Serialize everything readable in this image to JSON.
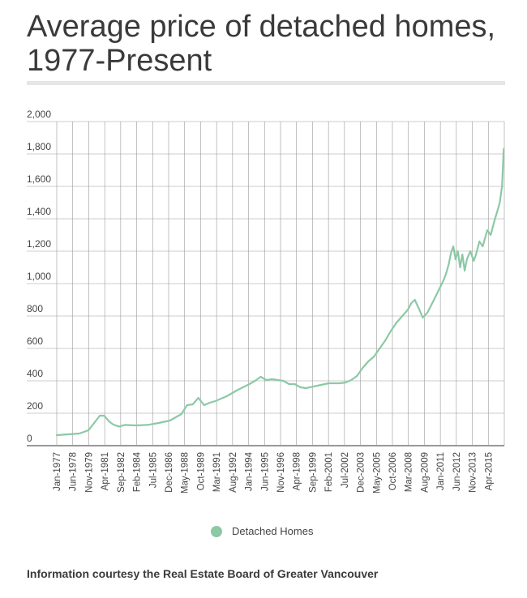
{
  "title": "Average price of detached homes, 1977-Present",
  "source": "Information courtesy the Real Estate Board of Greater Vancouver",
  "colors": {
    "series": "#8cc9a5",
    "grid": "#888888"
  },
  "chart_data": {
    "type": "line",
    "title": "Average price of detached homes, 1977-Present",
    "xlabel": "",
    "ylabel": "",
    "ylim": [
      0,
      2000
    ],
    "yticks": [
      0,
      200,
      400,
      600,
      800,
      1000,
      1200,
      1400,
      1600,
      1800,
      2000
    ],
    "ytick_labels": [
      "0",
      "200",
      "400",
      "600",
      "800",
      "1,000",
      "1,200",
      "1,400",
      "1,600",
      "1,800",
      "2,000"
    ],
    "x_unit": "years since Jan-1977",
    "xlim": [
      0,
      39.5
    ],
    "xtick_labels": [
      "Jan-1977",
      "Jun-1978",
      "Nov-1979",
      "Apr-1981",
      "Sep-1982",
      "Feb-1984",
      "Jul-1985",
      "Dec-1986",
      "May-1988",
      "Oct-1989",
      "Mar-1991",
      "Aug-1992",
      "Jan-1994",
      "Jun-1995",
      "Nov-1996",
      "Apr-1998",
      "Sep-1999",
      "Feb-2001",
      "Jul-2002",
      "Dec-2003",
      "May-2005",
      "Oct-2006",
      "Mar-2008",
      "Aug-2009",
      "Jan-2011",
      "Jun-2012",
      "Nov-2013",
      "Apr-2015"
    ],
    "legend": {
      "position": "bottom",
      "entries": [
        "Detached Homes"
      ]
    },
    "series": [
      {
        "name": "Detached Homes",
        "x": [
          0,
          1.0,
          2.0,
          2.8,
          3.3,
          3.8,
          4.2,
          4.6,
          5.0,
          5.5,
          6.0,
          7.0,
          8.0,
          9.0,
          10.0,
          11.0,
          11.5,
          12.0,
          12.5,
          13.0,
          13.5,
          14.0,
          15.0,
          16.0,
          17.0,
          17.5,
          18.0,
          18.5,
          19.0,
          20.0,
          20.5,
          21.0,
          21.5,
          22.0,
          23.0,
          24.0,
          25.0,
          25.5,
          26.0,
          26.5,
          27.0,
          27.5,
          28.0,
          28.5,
          29.0,
          29.5,
          30.0,
          30.5,
          31.0,
          31.3,
          31.6,
          32.0,
          32.3,
          32.7,
          33.0,
          33.5,
          34.0,
          34.2,
          34.4,
          34.6,
          34.8,
          35.0,
          35.2,
          35.4,
          35.6,
          35.8,
          36.0,
          36.2,
          36.5,
          36.8,
          37.0,
          37.3,
          37.6,
          38.0,
          38.3,
          38.6,
          38.9,
          39.1,
          39.3,
          39.45
        ],
        "values": [
          65,
          70,
          75,
          95,
          140,
          185,
          185,
          150,
          130,
          118,
          128,
          125,
          128,
          140,
          155,
          195,
          250,
          255,
          295,
          250,
          265,
          275,
          305,
          345,
          380,
          400,
          425,
          405,
          410,
          400,
          380,
          380,
          360,
          355,
          370,
          385,
          385,
          390,
          405,
          430,
          480,
          520,
          550,
          600,
          650,
          710,
          760,
          800,
          840,
          880,
          900,
          840,
          790,
          820,
          860,
          930,
          1000,
          1030,
          1070,
          1120,
          1190,
          1230,
          1150,
          1200,
          1100,
          1180,
          1080,
          1150,
          1200,
          1140,
          1180,
          1260,
          1230,
          1330,
          1300,
          1380,
          1450,
          1500,
          1600,
          1830
        ]
      }
    ]
  }
}
